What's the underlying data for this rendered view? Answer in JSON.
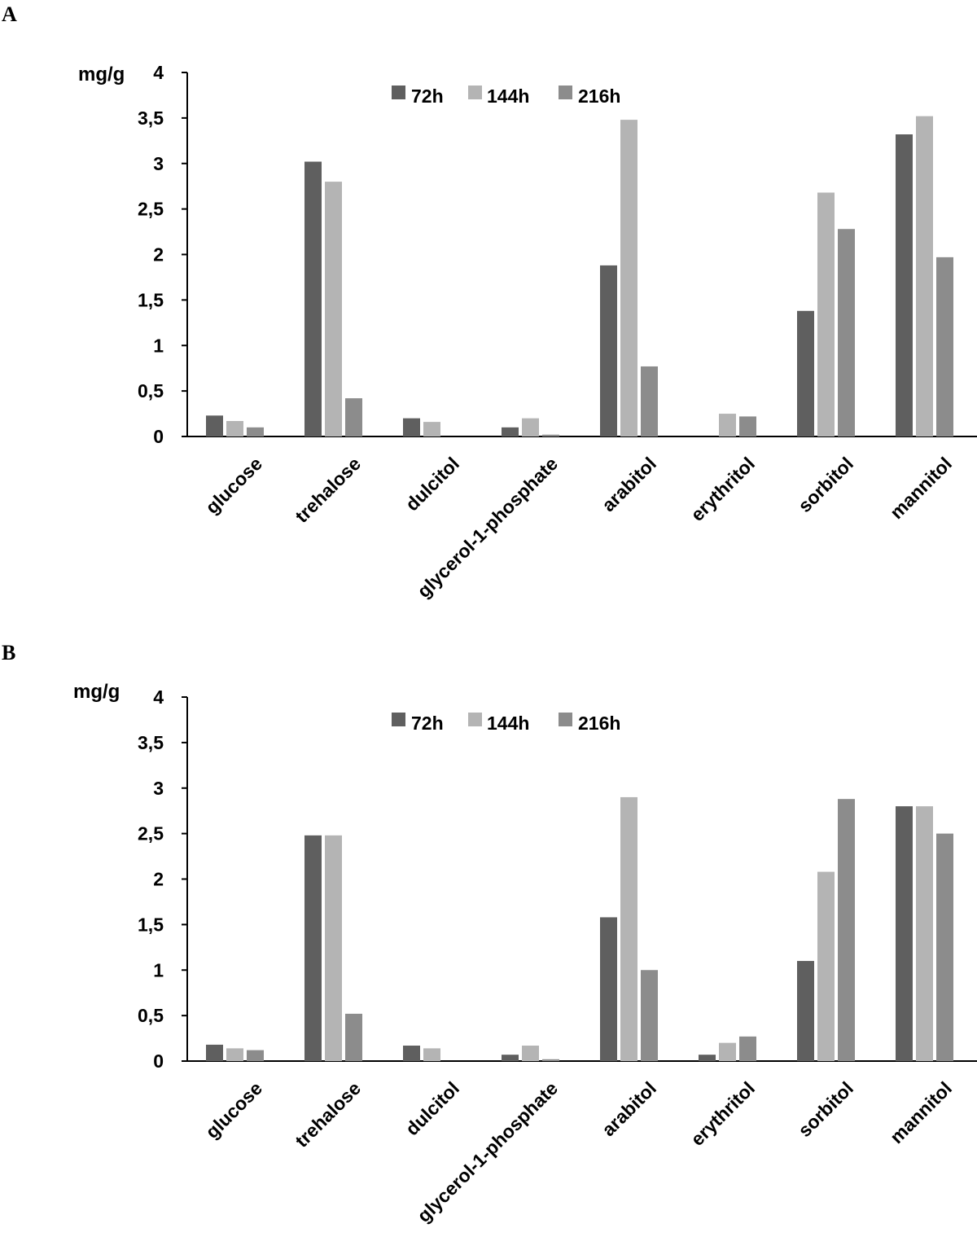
{
  "chart_data": [
    {
      "type": "bar",
      "panel": "A",
      "ylabel": "mg/g",
      "ylim": [
        0,
        4
      ],
      "yticks": [
        "0",
        "0,5",
        "1",
        "1,5",
        "2",
        "2,5",
        "3",
        "3,5",
        "4"
      ],
      "legend": "top-center",
      "grid": false,
      "categories": [
        "glucose",
        "trehalose",
        "dulcitol",
        "glycerol-1-phosphate",
        "arabitol",
        "erythritol",
        "sorbitol",
        "mannitol"
      ],
      "series": [
        {
          "name": "72h",
          "color": "#5f5f5f",
          "values": [
            0.23,
            3.02,
            0.2,
            0.1,
            1.88,
            0,
            1.38,
            3.32
          ]
        },
        {
          "name": "144h",
          "color": "#b4b4b4",
          "values": [
            0.17,
            2.8,
            0.16,
            0.2,
            3.48,
            0.25,
            2.68,
            3.52
          ]
        },
        {
          "name": "216h",
          "color": "#8c8c8c",
          "values": [
            0.1,
            0.42,
            0,
            0.02,
            0.77,
            0.22,
            2.28,
            1.97
          ]
        }
      ]
    },
    {
      "type": "bar",
      "panel": "B",
      "ylabel": "mg/g",
      "ylim": [
        0,
        4
      ],
      "yticks": [
        "0",
        "0,5",
        "1",
        "1,5",
        "2",
        "2,5",
        "3",
        "3,5",
        "4"
      ],
      "legend": "top-center",
      "grid": false,
      "categories": [
        "glucose",
        "trehalose",
        "dulcitol",
        "glycerol-1-phosphate",
        "arabitol",
        "erythritol",
        "sorbitol",
        "mannitol"
      ],
      "series": [
        {
          "name": "72h",
          "color": "#5f5f5f",
          "values": [
            0.18,
            2.48,
            0.17,
            0.07,
            1.58,
            0.07,
            1.1,
            2.8
          ]
        },
        {
          "name": "144h",
          "color": "#b4b4b4",
          "values": [
            0.14,
            2.48,
            0.14,
            0.17,
            2.9,
            0.2,
            2.08,
            2.8
          ]
        },
        {
          "name": "216h",
          "color": "#8c8c8c",
          "values": [
            0.12,
            0.52,
            0,
            0.02,
            1.0,
            0.27,
            2.88,
            2.5
          ]
        }
      ]
    }
  ]
}
